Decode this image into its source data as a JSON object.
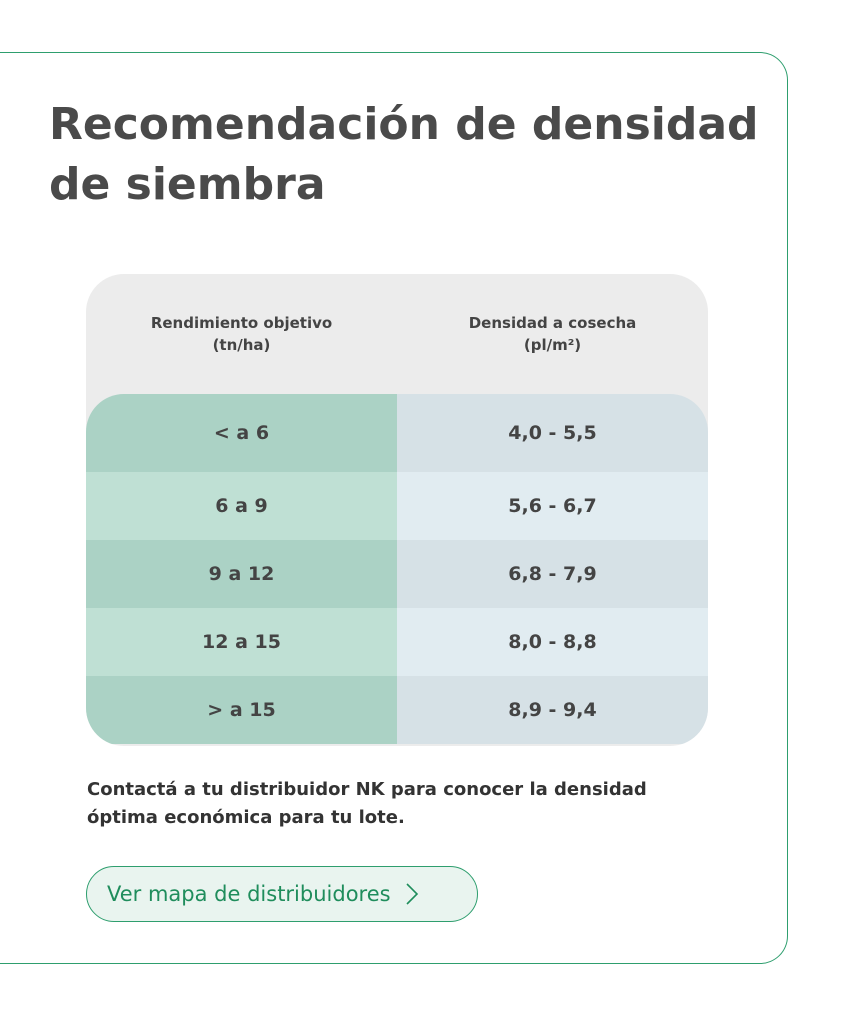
{
  "header": {
    "title": "Recomendación de densidad de siembra"
  },
  "table": {
    "headers": [
      "Rendimiento objetivo\n(tn/ha)",
      "Densidad a cosecha\n(pl/m²)"
    ],
    "rows": [
      [
        "< a 6",
        "4,0 - 5,5"
      ],
      [
        "6 a 9",
        "5,6 - 6,7"
      ],
      [
        "9 a 12",
        "6,8 - 7,9"
      ],
      [
        "12 a 15",
        "8,0 - 8,8"
      ],
      [
        "> a 15",
        "8,9 - 9,4"
      ]
    ]
  },
  "note": "Contactá a tu distribuidor NK para conocer la densidad óptima económica para tu lote.",
  "button": {
    "label": "Ver mapa de distribuidores"
  }
}
